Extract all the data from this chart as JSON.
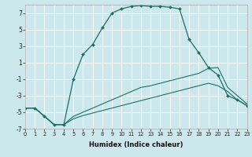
{
  "xlabel": "Humidex (Indice chaleur)",
  "bg_color": "#cde8ec",
  "line_color": "#1a7068",
  "grid_color": "#ffffff",
  "xlim": [
    0,
    23
  ],
  "ylim": [
    -7,
    8
  ],
  "xticks": [
    0,
    1,
    2,
    3,
    4,
    5,
    6,
    7,
    8,
    9,
    10,
    11,
    12,
    13,
    14,
    15,
    16,
    17,
    18,
    19,
    20,
    21,
    22,
    23
  ],
  "yticks": [
    -7,
    -5,
    -3,
    -1,
    1,
    3,
    5,
    7
  ],
  "series1_x": [
    0,
    1,
    2,
    3,
    4,
    5,
    6,
    7,
    8,
    9,
    10,
    11,
    12,
    13,
    14,
    15,
    16,
    17,
    18,
    19,
    20,
    21,
    22,
    23
  ],
  "series1_y": [
    -4.5,
    -4.5,
    -5.5,
    -6.5,
    -6.5,
    -1.0,
    2.0,
    3.2,
    5.2,
    7.0,
    7.5,
    7.8,
    7.9,
    7.8,
    7.8,
    7.7,
    7.5,
    3.8,
    2.2,
    0.4,
    -0.5,
    -3.0,
    -3.5,
    -4.2
  ],
  "series2_x": [
    0,
    1,
    2,
    3,
    4,
    5,
    6,
    7,
    8,
    9,
    10,
    11,
    12,
    13,
    14,
    15,
    16,
    17,
    18,
    19,
    20,
    21,
    22,
    23
  ],
  "series2_y": [
    -4.5,
    -4.5,
    -5.5,
    -6.5,
    -6.5,
    -5.5,
    -5.0,
    -4.5,
    -4.0,
    -3.5,
    -3.0,
    -2.5,
    -2.0,
    -1.8,
    -1.5,
    -1.2,
    -0.9,
    -0.6,
    -0.3,
    0.3,
    0.4,
    -2.0,
    -3.0,
    -4.0
  ],
  "series3_x": [
    0,
    1,
    2,
    3,
    4,
    5,
    6,
    7,
    8,
    9,
    10,
    11,
    12,
    13,
    14,
    15,
    16,
    17,
    18,
    19,
    20,
    21,
    22,
    23
  ],
  "series3_y": [
    -4.5,
    -4.5,
    -5.5,
    -6.5,
    -6.5,
    -5.8,
    -5.4,
    -5.1,
    -4.8,
    -4.5,
    -4.2,
    -3.9,
    -3.6,
    -3.3,
    -3.0,
    -2.7,
    -2.4,
    -2.1,
    -1.8,
    -1.5,
    -1.8,
    -2.5,
    -3.5,
    -4.2
  ]
}
